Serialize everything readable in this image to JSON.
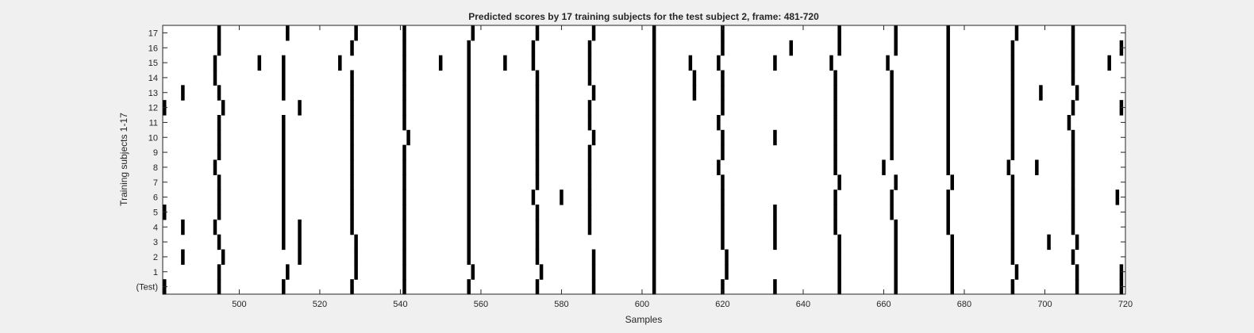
{
  "chart_data": {
    "type": "heatmap",
    "title": "Predicted scores by 17 training subjects for the test subject 2, frame: 481-720",
    "xlabel": "Samples",
    "ylabel": "Training subjects 1-17",
    "xlim": [
      481,
      720
    ],
    "xticks": [
      500,
      520,
      540,
      560,
      580,
      600,
      620,
      640,
      660,
      680,
      700,
      720
    ],
    "y_categories": [
      "(Test)",
      "1",
      "2",
      "3",
      "4",
      "5",
      "6",
      "7",
      "8",
      "9",
      "10",
      "11",
      "12",
      "13",
      "14",
      "15",
      "16",
      "17"
    ],
    "colors": {
      "background": "#ffffff",
      "mark": "#000000",
      "axis": "#262626",
      "figure": "#f0f0f0"
    },
    "grid": false,
    "legend": "none",
    "rows": [
      {
        "label": "(Test)",
        "marks": [
          481,
          495,
          511,
          528,
          541,
          557,
          574,
          588,
          603,
          620,
          633,
          649,
          663,
          677,
          692,
          708,
          719
        ]
      },
      {
        "label": "1",
        "marks": [
          495,
          512,
          529,
          541,
          558,
          575,
          588,
          603,
          621,
          649,
          663,
          677,
          693,
          708,
          719
        ]
      },
      {
        "label": "2",
        "marks": [
          486,
          496,
          515,
          529,
          541,
          557,
          574,
          588,
          603,
          621,
          649,
          663,
          677,
          692,
          707
        ]
      },
      {
        "label": "3",
        "marks": [
          495,
          511,
          515,
          529,
          541,
          557,
          574,
          603,
          620,
          633,
          649,
          663,
          677,
          692,
          701,
          708
        ]
      },
      {
        "label": "4",
        "marks": [
          486,
          494,
          511,
          515,
          528,
          541,
          557,
          574,
          587,
          603,
          620,
          633,
          648,
          663,
          676,
          692,
          707
        ]
      },
      {
        "label": "5",
        "marks": [
          481,
          495,
          511,
          528,
          541,
          557,
          574,
          587,
          603,
          620,
          633,
          648,
          662,
          676,
          692,
          707
        ]
      },
      {
        "label": "6",
        "marks": [
          495,
          511,
          528,
          541,
          557,
          573,
          580,
          587,
          603,
          620,
          648,
          662,
          676,
          692,
          707,
          718
        ]
      },
      {
        "label": "7",
        "marks": [
          495,
          511,
          528,
          541,
          557,
          574,
          587,
          603,
          620,
          649,
          663,
          677,
          692,
          707
        ]
      },
      {
        "label": "8",
        "marks": [
          494,
          511,
          528,
          541,
          557,
          574,
          587,
          603,
          619,
          648,
          660,
          676,
          691,
          698,
          707
        ]
      },
      {
        "label": "9",
        "marks": [
          495,
          511,
          528,
          541,
          557,
          574,
          587,
          603,
          620,
          648,
          662,
          676,
          692,
          707
        ]
      },
      {
        "label": "10",
        "marks": [
          495,
          511,
          528,
          542,
          557,
          574,
          588,
          603,
          620,
          633,
          648,
          662,
          676,
          692,
          707
        ]
      },
      {
        "label": "11",
        "marks": [
          495,
          511,
          528,
          541,
          557,
          574,
          587,
          603,
          619,
          648,
          662,
          676,
          692,
          706
        ]
      },
      {
        "label": "12",
        "marks": [
          481,
          496,
          515,
          528,
          541,
          557,
          574,
          587,
          603,
          620,
          648,
          662,
          676,
          692,
          707,
          719
        ]
      },
      {
        "label": "13",
        "marks": [
          486,
          495,
          511,
          528,
          541,
          557,
          574,
          588,
          603,
          613,
          620,
          648,
          662,
          676,
          692,
          699,
          708
        ]
      },
      {
        "label": "14",
        "marks": [
          494,
          511,
          528,
          541,
          557,
          574,
          587,
          603,
          613,
          620,
          648,
          662,
          676,
          692,
          707
        ]
      },
      {
        "label": "15",
        "marks": [
          494,
          505,
          511,
          525,
          541,
          550,
          557,
          566,
          573,
          587,
          603,
          612,
          619,
          633,
          647,
          661,
          676,
          692,
          707,
          716
        ]
      },
      {
        "label": "16",
        "marks": [
          495,
          528,
          541,
          557,
          573,
          587,
          603,
          620,
          637,
          649,
          663,
          676,
          692,
          707,
          719
        ]
      },
      {
        "label": "17",
        "marks": [
          495,
          512,
          529,
          541,
          558,
          574,
          588,
          603,
          620,
          649,
          663,
          676,
          693,
          707
        ]
      }
    ]
  }
}
